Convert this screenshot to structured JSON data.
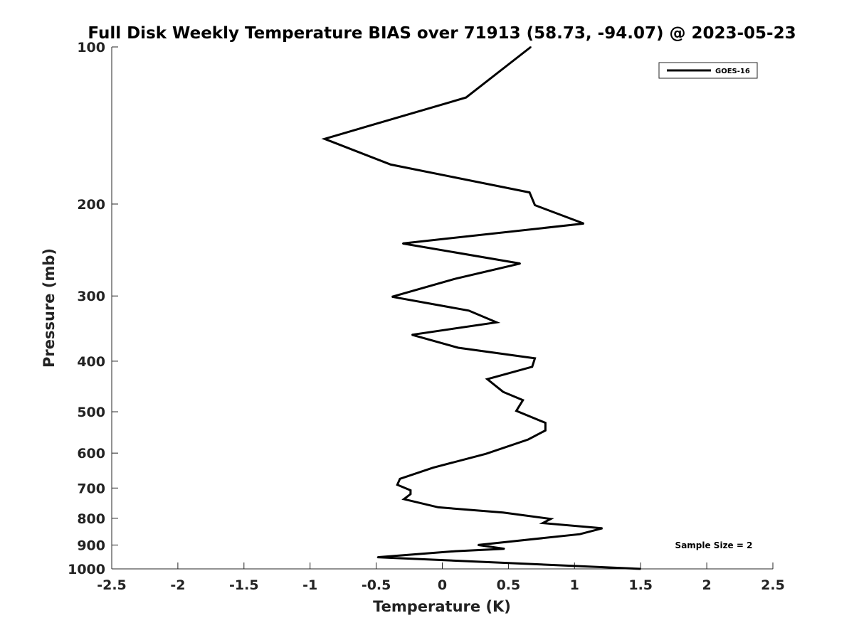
{
  "chart_data": {
    "type": "line",
    "title": "Full Disk Weekly Temperature BIAS over 71913 (58.73, -94.07) @ 2023-05-23",
    "xlabel": "Temperature (K)",
    "ylabel": "Pressure (mb)",
    "xlim": [
      -2.5,
      2.5
    ],
    "ylim": [
      1000,
      100
    ],
    "y_scale": "log",
    "y_reversed": true,
    "x_ticks": [
      -2.5,
      -2,
      -1.5,
      -1,
      -0.5,
      0,
      0.5,
      1,
      1.5,
      2,
      2.5
    ],
    "x_tick_labels": [
      "-2.5",
      "-2",
      "-1.5",
      "-1",
      "-0.5",
      "0",
      "0.5",
      "1",
      "1.5",
      "2",
      "2.5"
    ],
    "y_ticks": [
      100,
      200,
      300,
      400,
      500,
      600,
      700,
      800,
      900,
      1000
    ],
    "y_tick_labels": [
      "100",
      "200",
      "300",
      "400",
      "500",
      "600",
      "700",
      "800",
      "900",
      "1000"
    ],
    "grid": false,
    "legend_position": "top-right",
    "annotation": "Sample Size = 2",
    "series": [
      {
        "name": "GOES-16",
        "color": "#000000",
        "points": [
          {
            "x": 0.67,
            "y": 100
          },
          {
            "x": 0.18,
            "y": 125
          },
          {
            "x": -0.89,
            "y": 150
          },
          {
            "x": -0.39,
            "y": 168
          },
          {
            "x": 0.66,
            "y": 190
          },
          {
            "x": 0.7,
            "y": 201
          },
          {
            "x": 1.07,
            "y": 218
          },
          {
            "x": -0.3,
            "y": 238
          },
          {
            "x": 0.59,
            "y": 260
          },
          {
            "x": 0.1,
            "y": 278
          },
          {
            "x": -0.38,
            "y": 301
          },
          {
            "x": 0.2,
            "y": 320
          },
          {
            "x": 0.41,
            "y": 337
          },
          {
            "x": -0.23,
            "y": 356
          },
          {
            "x": 0.12,
            "y": 377
          },
          {
            "x": 0.7,
            "y": 395
          },
          {
            "x": 0.68,
            "y": 410
          },
          {
            "x": 0.34,
            "y": 433
          },
          {
            "x": 0.46,
            "y": 458
          },
          {
            "x": 0.61,
            "y": 475
          },
          {
            "x": 0.56,
            "y": 498
          },
          {
            "x": 0.78,
            "y": 525
          },
          {
            "x": 0.78,
            "y": 543
          },
          {
            "x": 0.65,
            "y": 565
          },
          {
            "x": 0.33,
            "y": 602
          },
          {
            "x": -0.07,
            "y": 640
          },
          {
            "x": -0.32,
            "y": 672
          },
          {
            "x": -0.34,
            "y": 690
          },
          {
            "x": -0.24,
            "y": 707
          },
          {
            "x": -0.24,
            "y": 719
          },
          {
            "x": -0.29,
            "y": 735
          },
          {
            "x": -0.03,
            "y": 762
          },
          {
            "x": 0.46,
            "y": 780
          },
          {
            "x": 0.82,
            "y": 802
          },
          {
            "x": 0.76,
            "y": 817
          },
          {
            "x": 1.21,
            "y": 836
          },
          {
            "x": 1.04,
            "y": 858
          },
          {
            "x": 0.27,
            "y": 900
          },
          {
            "x": 0.47,
            "y": 915
          },
          {
            "x": 0.1,
            "y": 925
          },
          {
            "x": -0.49,
            "y": 950
          },
          {
            "x": 1.5,
            "y": 1000
          }
        ]
      }
    ]
  }
}
